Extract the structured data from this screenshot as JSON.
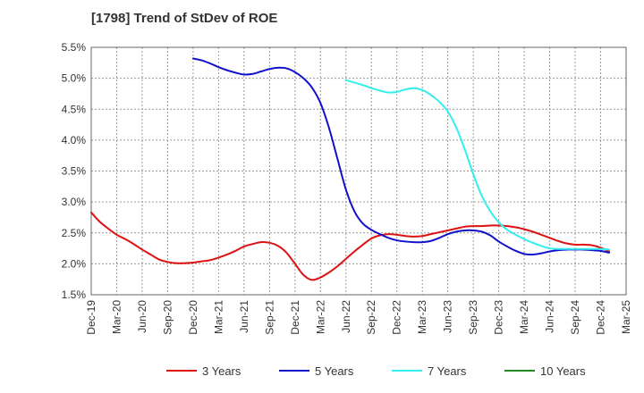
{
  "chart_data": {
    "type": "line",
    "title": "[1798]  Trend of StDev of ROE",
    "xlabel": "",
    "ylabel": "",
    "x_tick_labels": [
      "Dec-19",
      "Mar-20",
      "Jun-20",
      "Sep-20",
      "Dec-20",
      "Mar-21",
      "Jun-21",
      "Sep-21",
      "Dec-21",
      "Mar-22",
      "Jun-22",
      "Sep-22",
      "Dec-22",
      "Mar-23",
      "Jun-23",
      "Sep-23",
      "Dec-23",
      "Mar-24",
      "Jun-24",
      "Sep-24",
      "Dec-24",
      "Mar-25"
    ],
    "y_tick_labels": [
      "1.5%",
      "2.0%",
      "2.5%",
      "3.0%",
      "3.5%",
      "4.0%",
      "4.5%",
      "5.0%",
      "5.5%"
    ],
    "ylim": [
      1.5,
      5.5
    ],
    "grid": true,
    "legend_position": "bottom",
    "series": [
      {
        "name": "3 Years",
        "color": "#dd1111",
        "points": [
          [
            "Dec-19",
            2.83
          ],
          [
            "Jan-20",
            2.68
          ],
          [
            "Feb-20",
            2.57
          ],
          [
            "Mar-20",
            2.47
          ],
          [
            "Apr-20",
            2.4
          ],
          [
            "May-20",
            2.32
          ],
          [
            "Jun-20",
            2.23
          ],
          [
            "Jul-20",
            2.15
          ],
          [
            "Aug-20",
            2.07
          ],
          [
            "Sep-20",
            2.03
          ],
          [
            "Oct-20",
            2.01
          ],
          [
            "Nov-20",
            2.01
          ],
          [
            "Dec-20",
            2.02
          ],
          [
            "Jan-21",
            2.04
          ],
          [
            "Feb-21",
            2.06
          ],
          [
            "Mar-21",
            2.1
          ],
          [
            "Apr-21",
            2.15
          ],
          [
            "May-21",
            2.21
          ],
          [
            "Jun-21",
            2.28
          ],
          [
            "Jul-21",
            2.32
          ],
          [
            "Aug-21",
            2.35
          ],
          [
            "Sep-21",
            2.34
          ],
          [
            "Oct-21",
            2.29
          ],
          [
            "Nov-21",
            2.18
          ],
          [
            "Dec-21",
            2.0
          ],
          [
            "Jan-22",
            1.82
          ],
          [
            "Feb-22",
            1.74
          ],
          [
            "Mar-22",
            1.78
          ],
          [
            "Apr-22",
            1.86
          ],
          [
            "May-22",
            1.96
          ],
          [
            "Jun-22",
            2.08
          ],
          [
            "Jul-22",
            2.2
          ],
          [
            "Aug-22",
            2.31
          ],
          [
            "Sep-22",
            2.41
          ],
          [
            "Oct-22",
            2.46
          ],
          [
            "Nov-22",
            2.48
          ],
          [
            "Dec-22",
            2.47
          ],
          [
            "Jan-23",
            2.45
          ],
          [
            "Feb-23",
            2.44
          ],
          [
            "Mar-23",
            2.45
          ],
          [
            "Apr-23",
            2.48
          ],
          [
            "May-23",
            2.51
          ],
          [
            "Jun-23",
            2.54
          ],
          [
            "Jul-23",
            2.57
          ],
          [
            "Aug-23",
            2.6
          ],
          [
            "Sep-23",
            2.61
          ],
          [
            "Oct-23",
            2.61
          ],
          [
            "Nov-23",
            2.62
          ],
          [
            "Dec-23",
            2.62
          ],
          [
            "Jan-24",
            2.61
          ],
          [
            "Feb-24",
            2.59
          ],
          [
            "Mar-24",
            2.56
          ],
          [
            "Apr-24",
            2.52
          ],
          [
            "May-24",
            2.47
          ],
          [
            "Jun-24",
            2.42
          ],
          [
            "Jul-24",
            2.37
          ],
          [
            "Aug-24",
            2.33
          ],
          [
            "Sep-24",
            2.31
          ],
          [
            "Oct-24",
            2.31
          ],
          [
            "Nov-24",
            2.3
          ],
          [
            "Dec-24",
            2.26
          ],
          [
            "Jan-25",
            2.2
          ]
        ]
      },
      {
        "name": "5 Years",
        "color": "#1111cc",
        "points": [
          [
            "Dec-20",
            5.32
          ],
          [
            "Jan-21",
            5.29
          ],
          [
            "Feb-21",
            5.24
          ],
          [
            "Mar-21",
            5.18
          ],
          [
            "Apr-21",
            5.13
          ],
          [
            "May-21",
            5.09
          ],
          [
            "Jun-21",
            5.06
          ],
          [
            "Jul-21",
            5.07
          ],
          [
            "Aug-21",
            5.11
          ],
          [
            "Sep-21",
            5.15
          ],
          [
            "Oct-21",
            5.17
          ],
          [
            "Nov-21",
            5.16
          ],
          [
            "Dec-21",
            5.1
          ],
          [
            "Jan-22",
            5.0
          ],
          [
            "Feb-22",
            4.85
          ],
          [
            "Mar-22",
            4.6
          ],
          [
            "Apr-22",
            4.2
          ],
          [
            "May-22",
            3.7
          ],
          [
            "Jun-22",
            3.2
          ],
          [
            "Jul-22",
            2.85
          ],
          [
            "Aug-22",
            2.65
          ],
          [
            "Sep-22",
            2.55
          ],
          [
            "Oct-22",
            2.48
          ],
          [
            "Nov-22",
            2.42
          ],
          [
            "Dec-22",
            2.38
          ],
          [
            "Jan-23",
            2.36
          ],
          [
            "Feb-23",
            2.35
          ],
          [
            "Mar-23",
            2.35
          ],
          [
            "Apr-23",
            2.37
          ],
          [
            "May-23",
            2.42
          ],
          [
            "Jun-23",
            2.48
          ],
          [
            "Jul-23",
            2.52
          ],
          [
            "Aug-23",
            2.54
          ],
          [
            "Sep-23",
            2.54
          ],
          [
            "Oct-23",
            2.52
          ],
          [
            "Nov-23",
            2.46
          ],
          [
            "Dec-23",
            2.36
          ],
          [
            "Jan-24",
            2.28
          ],
          [
            "Feb-24",
            2.21
          ],
          [
            "Mar-24",
            2.16
          ],
          [
            "Apr-24",
            2.15
          ],
          [
            "May-24",
            2.17
          ],
          [
            "Jun-24",
            2.2
          ],
          [
            "Jul-24",
            2.22
          ],
          [
            "Aug-24",
            2.23
          ],
          [
            "Sep-24",
            2.23
          ],
          [
            "Oct-24",
            2.23
          ],
          [
            "Nov-24",
            2.22
          ],
          [
            "Dec-24",
            2.21
          ],
          [
            "Jan-25",
            2.18
          ]
        ]
      },
      {
        "name": "7 Years",
        "color": "#33eeee",
        "points": [
          [
            "Jun-22",
            4.97
          ],
          [
            "Jul-22",
            4.93
          ],
          [
            "Aug-22",
            4.89
          ],
          [
            "Sep-22",
            4.84
          ],
          [
            "Oct-22",
            4.8
          ],
          [
            "Nov-22",
            4.77
          ],
          [
            "Dec-22",
            4.78
          ],
          [
            "Jan-23",
            4.82
          ],
          [
            "Feb-23",
            4.84
          ],
          [
            "Mar-23",
            4.81
          ],
          [
            "Apr-23",
            4.73
          ],
          [
            "May-23",
            4.62
          ],
          [
            "Jun-23",
            4.46
          ],
          [
            "Jul-23",
            4.2
          ],
          [
            "Aug-23",
            3.85
          ],
          [
            "Sep-23",
            3.45
          ],
          [
            "Oct-23",
            3.1
          ],
          [
            "Nov-23",
            2.85
          ],
          [
            "Dec-23",
            2.67
          ],
          [
            "Jan-24",
            2.55
          ],
          [
            "Feb-24",
            2.47
          ],
          [
            "Mar-24",
            2.4
          ],
          [
            "Apr-24",
            2.34
          ],
          [
            "May-24",
            2.29
          ],
          [
            "Jun-24",
            2.25
          ],
          [
            "Jul-24",
            2.24
          ],
          [
            "Aug-24",
            2.24
          ],
          [
            "Sep-24",
            2.24
          ],
          [
            "Oct-24",
            2.24
          ],
          [
            "Nov-24",
            2.24
          ],
          [
            "Dec-24",
            2.24
          ],
          [
            "Jan-25",
            2.23
          ]
        ]
      },
      {
        "name": "10 Years",
        "color": "#228822",
        "points": []
      }
    ]
  }
}
